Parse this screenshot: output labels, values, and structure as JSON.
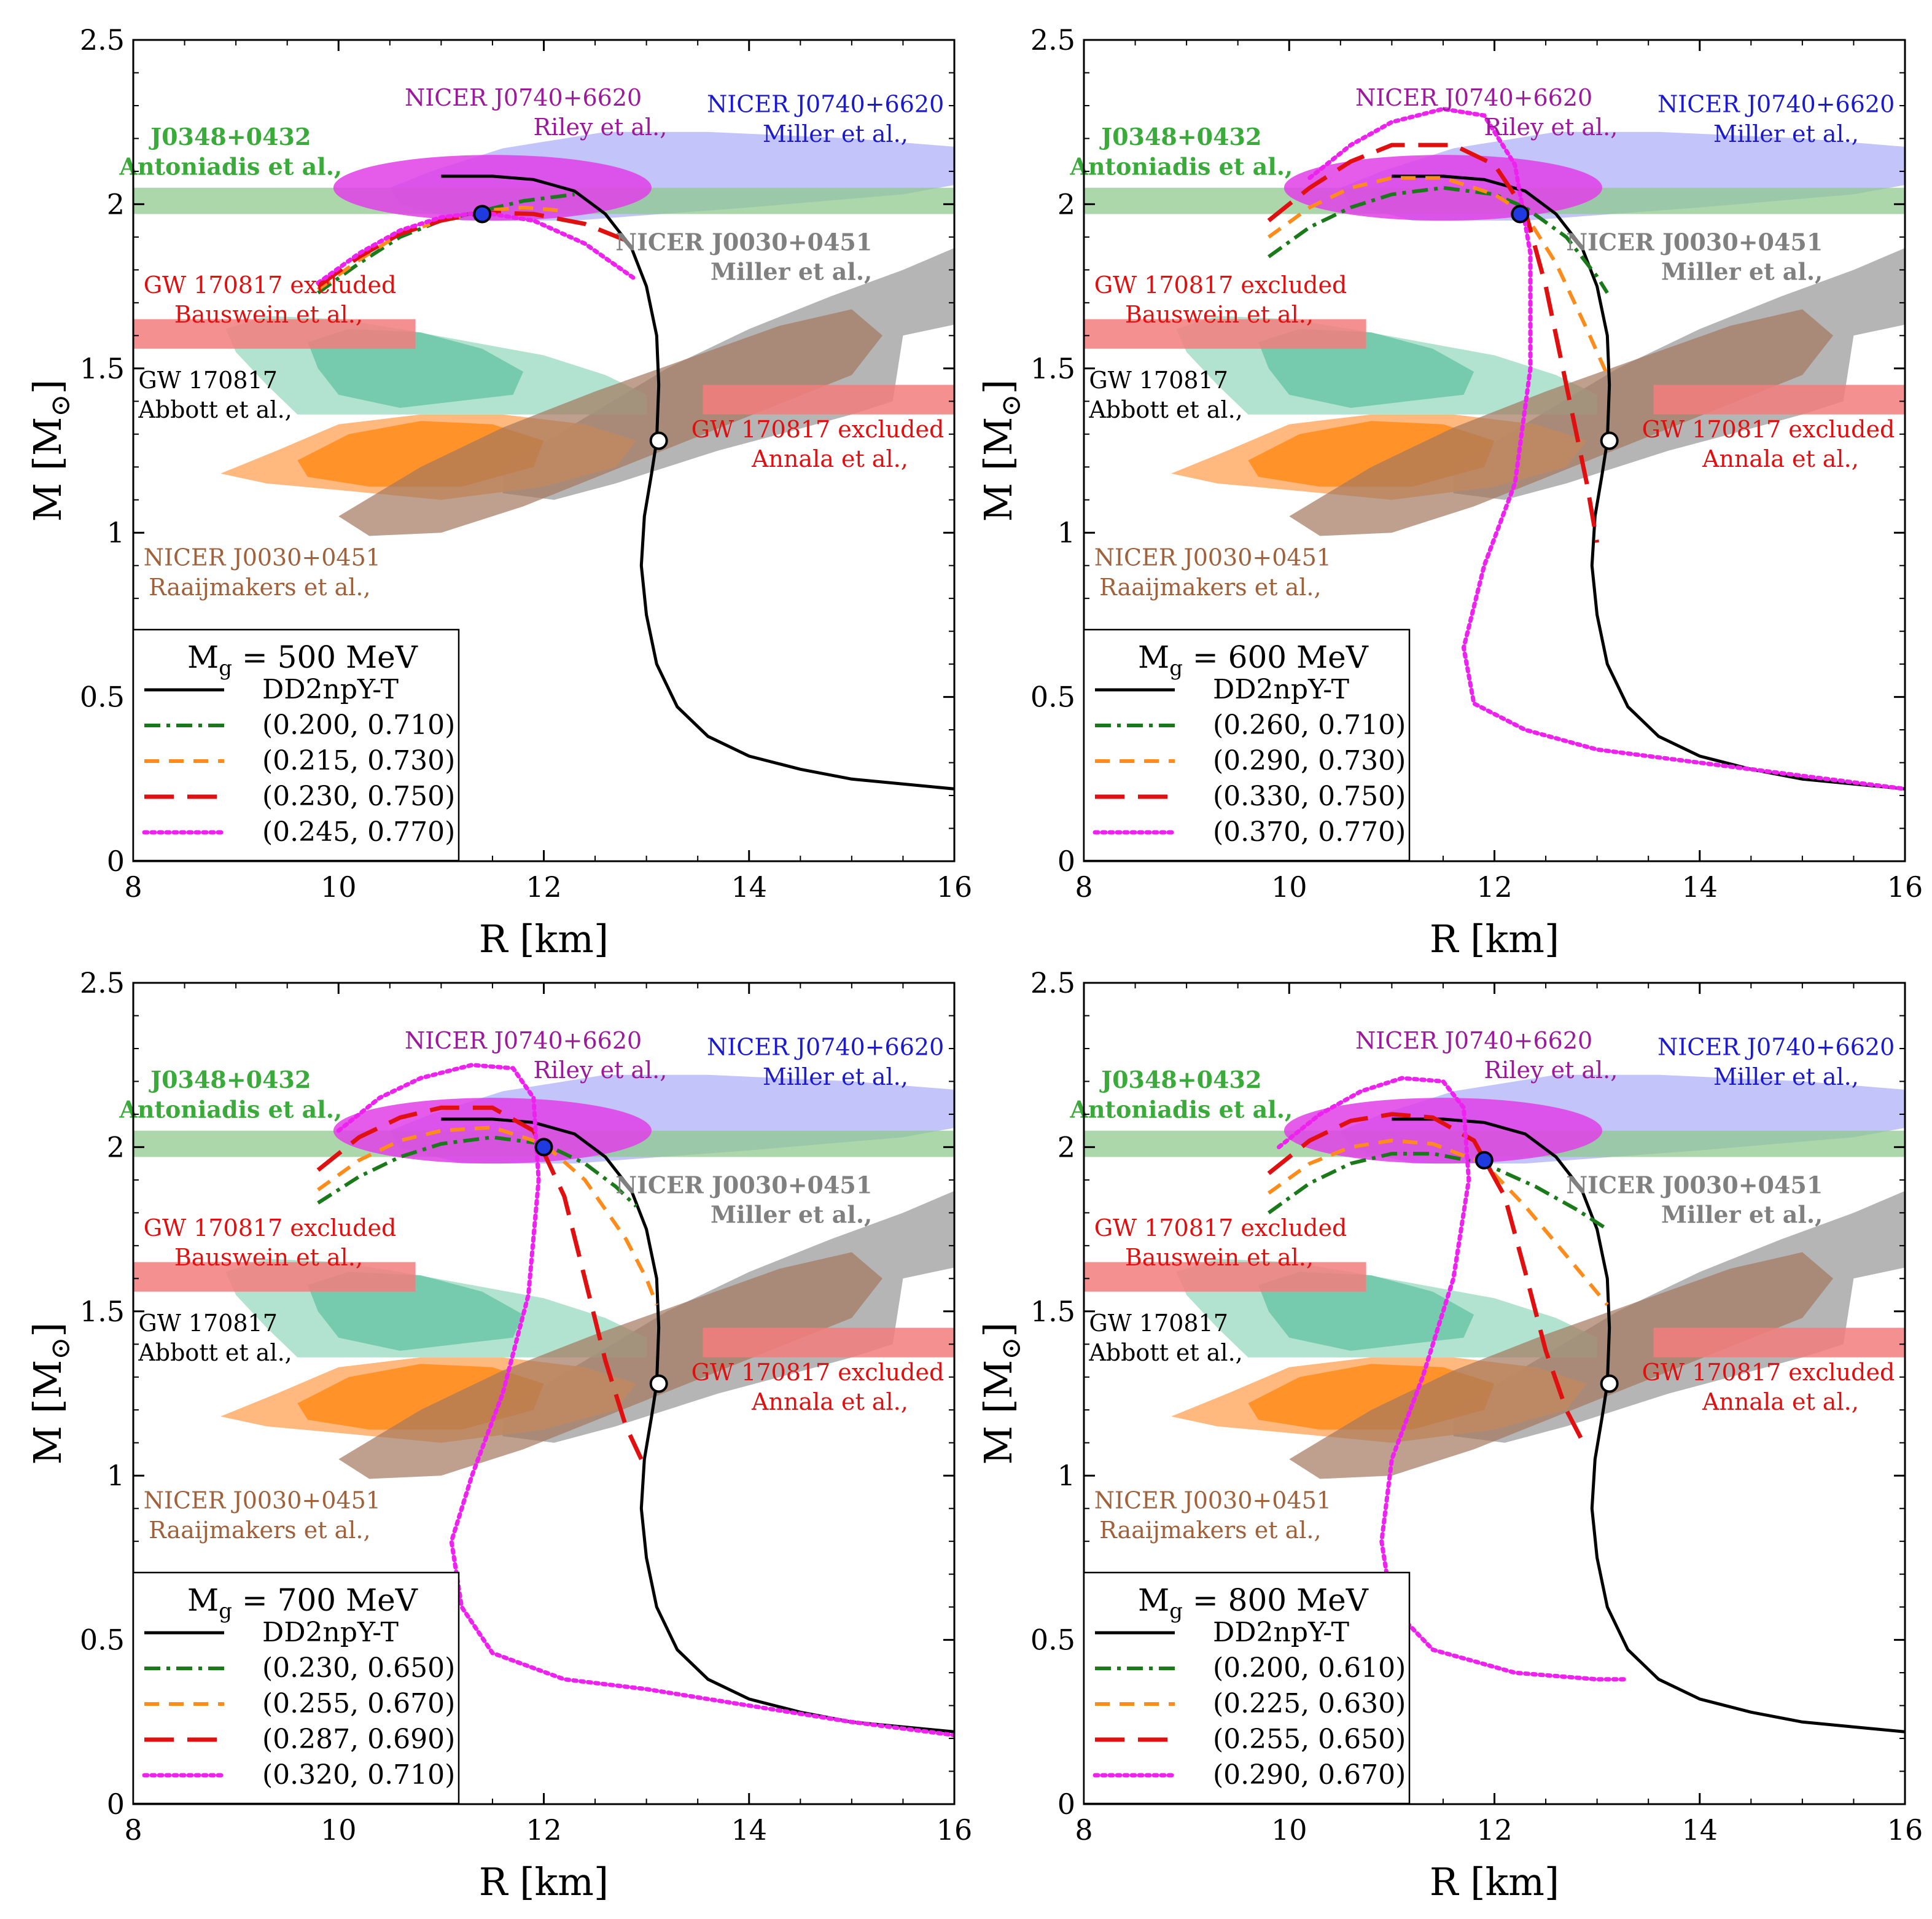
{
  "colors": {
    "dd2": "#000000",
    "green": "#1a7a1a",
    "orange": "#ff8c1a",
    "red": "#e01010",
    "magenta": "#ee22ee",
    "j0348": "#8fca8f",
    "abbott_outer": "#9fdcc4",
    "abbott_inner": "#5cc0a0",
    "raaij_outer": "#ffb070",
    "raaij_inner": "#ff8c1a",
    "miller0030": "#a8a8a8",
    "brown": "#a4785e",
    "riley": "#e040e8",
    "miller0740": "#aeb0f8",
    "excluded": "#f37c7c",
    "blue_marker": "#1e3ae0"
  },
  "chart_data": [
    {
      "type": "line",
      "panel": "top-left",
      "title": "M_g = 500 MeV",
      "legend_title_main": "M",
      "legend_title_sub": "g",
      "legend_title_rest": " = 500 MeV",
      "xlabel": "R [km]",
      "ylabel_main": "M [M",
      "ylabel_sub": "⊙",
      "ylabel_close": "]",
      "xlim": [
        8,
        16
      ],
      "ylim": [
        0,
        2.5
      ],
      "xticks": [
        "8",
        "10",
        "12",
        "14",
        "16"
      ],
      "yticks": [
        "0",
        "0.5",
        "1",
        "1.5",
        "2",
        "2.5"
      ],
      "series": [
        {
          "name": "DD2npY-T",
          "style": "solid",
          "color": "#000000"
        },
        {
          "name": "(0.200, 0.710)",
          "style": "dashdot",
          "color": "#1a7a1a",
          "points": [
            [
              9.8,
              1.73
            ],
            [
              10.2,
              1.82
            ],
            [
              10.6,
              1.9
            ],
            [
              11.0,
              1.95
            ],
            [
              11.4,
              1.98
            ],
            [
              11.8,
              2.01
            ],
            [
              12.3,
              2.03
            ]
          ]
        },
        {
          "name": "(0.215, 0.730)",
          "style": "dash",
          "color": "#ff8c1a",
          "points": [
            [
              9.8,
              1.74
            ],
            [
              10.2,
              1.83
            ],
            [
              10.6,
              1.91
            ],
            [
              11.0,
              1.95
            ],
            [
              11.4,
              1.98
            ],
            [
              11.8,
              1.99
            ],
            [
              12.2,
              1.98
            ]
          ]
        },
        {
          "name": "(0.230, 0.750)",
          "style": "longdash",
          "color": "#e01010",
          "points": [
            [
              9.8,
              1.75
            ],
            [
              10.2,
              1.84
            ],
            [
              10.6,
              1.91
            ],
            [
              11.0,
              1.95
            ],
            [
              11.4,
              1.975
            ],
            [
              11.9,
              1.97
            ],
            [
              12.4,
              1.94
            ],
            [
              12.8,
              1.89
            ]
          ]
        },
        {
          "name": "(0.245, 0.770)",
          "style": "dotted",
          "color": "#ee22ee",
          "points": [
            [
              9.8,
              1.76
            ],
            [
              10.2,
              1.85
            ],
            [
              10.6,
              1.92
            ],
            [
              11.0,
              1.96
            ],
            [
              11.4,
              1.975
            ],
            [
              11.9,
              1.95
            ],
            [
              12.4,
              1.88
            ],
            [
              12.9,
              1.77
            ]
          ]
        }
      ],
      "blue_marker": [
        11.4,
        1.97
      ]
    },
    {
      "type": "line",
      "panel": "top-right",
      "title": "M_g = 600 MeV",
      "legend_title_main": "M",
      "legend_title_sub": "g",
      "legend_title_rest": " = 600 MeV",
      "xlabel": "R [km]",
      "ylabel_main": "M [M",
      "ylabel_sub": "⊙",
      "ylabel_close": "]",
      "xlim": [
        8,
        16
      ],
      "ylim": [
        0,
        2.5
      ],
      "xticks": [
        "8",
        "10",
        "12",
        "14",
        "16"
      ],
      "yticks": [
        "0",
        "0.5",
        "1",
        "1.5",
        "2",
        "2.5"
      ],
      "series": [
        {
          "name": "DD2npY-T",
          "style": "solid",
          "color": "#000000"
        },
        {
          "name": "(0.260, 0.710)",
          "style": "dashdot",
          "color": "#1a7a1a",
          "points": [
            [
              9.8,
              1.84
            ],
            [
              10.2,
              1.93
            ],
            [
              10.6,
              1.99
            ],
            [
              11.0,
              2.03
            ],
            [
              11.5,
              2.05
            ],
            [
              12.0,
              2.03
            ],
            [
              12.3,
              1.99
            ],
            [
              12.7,
              1.9
            ],
            [
              13.0,
              1.78
            ],
            [
              13.1,
              1.73
            ]
          ]
        },
        {
          "name": "(0.290, 0.730)",
          "style": "dash",
          "color": "#ff8c1a",
          "points": [
            [
              9.8,
              1.9
            ],
            [
              10.2,
              1.99
            ],
            [
              10.6,
              2.05
            ],
            [
              11.0,
              2.08
            ],
            [
              11.5,
              2.08
            ],
            [
              12.0,
              2.03
            ],
            [
              12.3,
              1.97
            ],
            [
              12.6,
              1.82
            ],
            [
              12.9,
              1.62
            ],
            [
              13.1,
              1.48
            ]
          ]
        },
        {
          "name": "(0.330, 0.750)",
          "style": "longdash",
          "color": "#e01010",
          "points": [
            [
              9.8,
              1.95
            ],
            [
              10.2,
              2.05
            ],
            [
              10.6,
              2.13
            ],
            [
              11.0,
              2.18
            ],
            [
              11.6,
              2.18
            ],
            [
              12.0,
              2.12
            ],
            [
              12.3,
              1.98
            ],
            [
              12.5,
              1.75
            ],
            [
              12.7,
              1.45
            ],
            [
              12.9,
              1.15
            ],
            [
              13.0,
              0.97
            ]
          ]
        },
        {
          "name": "(0.370, 0.770)",
          "style": "dotted",
          "color": "#ee22ee",
          "points": [
            [
              10.2,
              2.08
            ],
            [
              10.6,
              2.18
            ],
            [
              11.0,
              2.25
            ],
            [
              11.5,
              2.29
            ],
            [
              11.9,
              2.27
            ],
            [
              12.2,
              2.12
            ],
            [
              12.35,
              1.85
            ],
            [
              12.35,
              1.5
            ],
            [
              12.2,
              1.15
            ],
            [
              11.9,
              0.9
            ],
            [
              11.7,
              0.65
            ],
            [
              11.8,
              0.48
            ],
            [
              12.3,
              0.4
            ],
            [
              13.0,
              0.34
            ],
            [
              14.0,
              0.3
            ],
            [
              15.0,
              0.26
            ],
            [
              16.0,
              0.22
            ]
          ]
        }
      ],
      "blue_marker": [
        12.25,
        1.97
      ]
    },
    {
      "type": "line",
      "panel": "bottom-left",
      "title": "M_g = 700 MeV",
      "legend_title_main": "M",
      "legend_title_sub": "g",
      "legend_title_rest": " = 700 MeV",
      "xlabel": "R [km]",
      "ylabel_main": "M [M",
      "ylabel_sub": "⊙",
      "ylabel_close": "]",
      "xlim": [
        8,
        16
      ],
      "ylim": [
        0,
        2.5
      ],
      "xticks": [
        "8",
        "10",
        "12",
        "14",
        "16"
      ],
      "yticks": [
        "0",
        "0.5",
        "1",
        "1.5",
        "2",
        "2.5"
      ],
      "series": [
        {
          "name": "DD2npY-T",
          "style": "solid",
          "color": "#000000"
        },
        {
          "name": "(0.230, 0.650)",
          "style": "dashdot",
          "color": "#1a7a1a",
          "points": [
            [
              9.8,
              1.83
            ],
            [
              10.2,
              1.91
            ],
            [
              10.6,
              1.97
            ],
            [
              11.0,
              2.01
            ],
            [
              11.5,
              2.03
            ],
            [
              12.0,
              2.01
            ],
            [
              12.4,
              1.95
            ],
            [
              12.7,
              1.88
            ],
            [
              12.9,
              1.82
            ]
          ]
        },
        {
          "name": "(0.255, 0.670)",
          "style": "dash",
          "color": "#ff8c1a",
          "points": [
            [
              9.8,
              1.87
            ],
            [
              10.2,
              1.96
            ],
            [
              10.6,
              2.02
            ],
            [
              11.0,
              2.05
            ],
            [
              11.5,
              2.06
            ],
            [
              12.0,
              2.01
            ],
            [
              12.4,
              1.9
            ],
            [
              12.8,
              1.72
            ],
            [
              13.0,
              1.6
            ],
            [
              13.1,
              1.52
            ]
          ]
        },
        {
          "name": "(0.287, 0.690)",
          "style": "longdash",
          "color": "#e01010",
          "points": [
            [
              9.8,
              1.93
            ],
            [
              10.2,
              2.03
            ],
            [
              10.6,
              2.09
            ],
            [
              11.0,
              2.12
            ],
            [
              11.5,
              2.12
            ],
            [
              11.9,
              2.05
            ],
            [
              12.2,
              1.85
            ],
            [
              12.4,
              1.6
            ],
            [
              12.6,
              1.35
            ],
            [
              12.8,
              1.15
            ],
            [
              12.95,
              1.05
            ]
          ]
        },
        {
          "name": "(0.320, 0.710)",
          "style": "dotted",
          "color": "#ee22ee",
          "points": [
            [
              10.0,
              2.05
            ],
            [
              10.4,
              2.15
            ],
            [
              10.8,
              2.21
            ],
            [
              11.3,
              2.25
            ],
            [
              11.7,
              2.24
            ],
            [
              11.9,
              2.15
            ],
            [
              11.95,
              1.9
            ],
            [
              11.85,
              1.55
            ],
            [
              11.6,
              1.25
            ],
            [
              11.3,
              1.0
            ],
            [
              11.1,
              0.8
            ],
            [
              11.2,
              0.6
            ],
            [
              11.5,
              0.46
            ],
            [
              12.2,
              0.38
            ],
            [
              13.0,
              0.35
            ],
            [
              14.0,
              0.3
            ],
            [
              15.0,
              0.25
            ],
            [
              16.0,
              0.21
            ]
          ]
        }
      ],
      "blue_marker": [
        12.0,
        2.0
      ]
    },
    {
      "type": "line",
      "panel": "bottom-right",
      "title": "M_g = 800 MeV",
      "legend_title_main": "M",
      "legend_title_sub": "g",
      "legend_title_rest": " = 800 MeV",
      "xlabel": "R [km]",
      "ylabel_main": "M [M",
      "ylabel_sub": "⊙",
      "ylabel_close": "]",
      "xlim": [
        8,
        16
      ],
      "ylim": [
        0,
        2.5
      ],
      "xticks": [
        "8",
        "10",
        "12",
        "14",
        "16"
      ],
      "yticks": [
        "0",
        "0.5",
        "1",
        "1.5",
        "2",
        "2.5"
      ],
      "series": [
        {
          "name": "DD2npY-T",
          "style": "solid",
          "color": "#000000"
        },
        {
          "name": "(0.200, 0.610)",
          "style": "dashdot",
          "color": "#1a7a1a",
          "points": [
            [
              9.8,
              1.8
            ],
            [
              10.2,
              1.89
            ],
            [
              10.6,
              1.95
            ],
            [
              11.0,
              1.98
            ],
            [
              11.4,
              1.98
            ],
            [
              11.9,
              1.95
            ],
            [
              12.4,
              1.88
            ],
            [
              12.8,
              1.81
            ],
            [
              13.1,
              1.75
            ]
          ]
        },
        {
          "name": "(0.225, 0.630)",
          "style": "dash",
          "color": "#ff8c1a",
          "points": [
            [
              9.8,
              1.86
            ],
            [
              10.2,
              1.95
            ],
            [
              10.6,
              2.0
            ],
            [
              11.0,
              2.02
            ],
            [
              11.4,
              2.01
            ],
            [
              11.9,
              1.95
            ],
            [
              12.3,
              1.82
            ],
            [
              12.7,
              1.67
            ],
            [
              13.1,
              1.52
            ]
          ]
        },
        {
          "name": "(0.255, 0.650)",
          "style": "longdash",
          "color": "#e01010",
          "points": [
            [
              9.8,
              1.92
            ],
            [
              10.2,
              2.02
            ],
            [
              10.6,
              2.08
            ],
            [
              11.0,
              2.1
            ],
            [
              11.4,
              2.09
            ],
            [
              11.8,
              2.02
            ],
            [
              12.1,
              1.85
            ],
            [
              12.3,
              1.62
            ],
            [
              12.5,
              1.38
            ],
            [
              12.7,
              1.2
            ],
            [
              12.9,
              1.08
            ]
          ]
        },
        {
          "name": "(0.290, 0.670)",
          "style": "dotted",
          "color": "#ee22ee",
          "points": [
            [
              9.9,
              2.0
            ],
            [
              10.3,
              2.1
            ],
            [
              10.7,
              2.17
            ],
            [
              11.1,
              2.21
            ],
            [
              11.5,
              2.2
            ],
            [
              11.7,
              2.12
            ],
            [
              11.75,
              1.9
            ],
            [
              11.6,
              1.6
            ],
            [
              11.3,
              1.3
            ],
            [
              11.0,
              1.05
            ],
            [
              10.9,
              0.8
            ],
            [
              11.0,
              0.6
            ],
            [
              11.4,
              0.47
            ],
            [
              12.2,
              0.4
            ],
            [
              13.0,
              0.38
            ],
            [
              13.3,
              0.38
            ]
          ]
        }
      ],
      "blue_marker": [
        11.9,
        1.96
      ]
    }
  ],
  "dd2_curve": [
    [
      16.0,
      0.22
    ],
    [
      15.0,
      0.25
    ],
    [
      14.5,
      0.28
    ],
    [
      14.0,
      0.32
    ],
    [
      13.6,
      0.38
    ],
    [
      13.3,
      0.47
    ],
    [
      13.1,
      0.6
    ],
    [
      13.0,
      0.75
    ],
    [
      12.95,
      0.9
    ],
    [
      12.98,
      1.05
    ],
    [
      13.05,
      1.18
    ],
    [
      13.1,
      1.28
    ],
    [
      13.12,
      1.45
    ],
    [
      13.1,
      1.6
    ],
    [
      13.0,
      1.75
    ],
    [
      12.85,
      1.87
    ],
    [
      12.6,
      1.97
    ],
    [
      12.3,
      2.04
    ],
    [
      11.9,
      2.075
    ],
    [
      11.5,
      2.085
    ],
    [
      11.0,
      2.085
    ]
  ],
  "reference_markers": {
    "white": [
      13.12,
      1.28
    ]
  },
  "regions": {
    "j0348": {
      "name": "J0348+0432",
      "authors": "Antoniadis et al.,",
      "x": [
        8,
        16
      ],
      "y": [
        1.97,
        2.05
      ]
    },
    "bauswein": {
      "name": "GW 170817 excluded",
      "authors": "Bauswein et al.,",
      "x": [
        8,
        10.75
      ],
      "y": [
        1.56,
        1.65
      ]
    },
    "annala": {
      "name": "GW 170817 excluded",
      "authors": "Annala et al.,",
      "x": [
        13.55,
        16
      ],
      "y": [
        1.36,
        1.45
      ]
    },
    "abbott": {
      "name": "GW 170817",
      "authors": "Abbott et al.,"
    },
    "raaij": {
      "name": "NICER J0030+0451",
      "authors": "Raaijmakers et al.,"
    },
    "miller0030": {
      "name": "NICER J0030+0451",
      "authors": "Miller et al.,"
    },
    "riley": {
      "name": "NICER J0740+6620",
      "authors": "Riley et al.,"
    },
    "miller0740": {
      "name": "NICER J0740+6620",
      "authors": "Miller et al.,"
    }
  }
}
